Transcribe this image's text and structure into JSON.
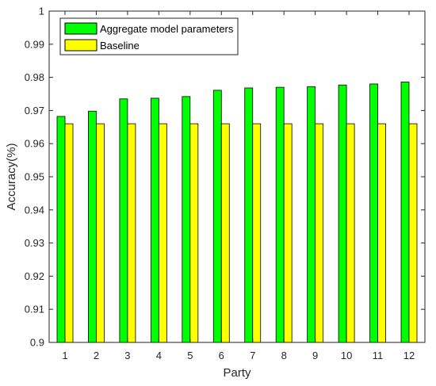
{
  "chart_data": {
    "type": "bar",
    "title": "",
    "xlabel": "Party",
    "ylabel": "Accuracy(%)",
    "categories": [
      "1",
      "2",
      "3",
      "4",
      "5",
      "6",
      "7",
      "8",
      "9",
      "10",
      "11",
      "12"
    ],
    "series": [
      {
        "name": "Aggregate model parameters",
        "color": "#00ff00",
        "values": [
          0.9682,
          0.9698,
          0.9735,
          0.9737,
          0.9742,
          0.9761,
          0.9768,
          0.977,
          0.9772,
          0.9777,
          0.978,
          0.9786
        ]
      },
      {
        "name": "Baseline",
        "color": "#ffff00",
        "values": [
          0.966,
          0.966,
          0.966,
          0.966,
          0.966,
          0.966,
          0.966,
          0.966,
          0.966,
          0.966,
          0.966,
          0.966
        ]
      }
    ],
    "ylim": [
      0.9,
      1.0
    ],
    "yticks": [
      "0.9",
      "0.91",
      "0.92",
      "0.93",
      "0.94",
      "0.95",
      "0.96",
      "0.97",
      "0.98",
      "0.99",
      "1"
    ],
    "grid": false,
    "legend_position": "top-left"
  }
}
